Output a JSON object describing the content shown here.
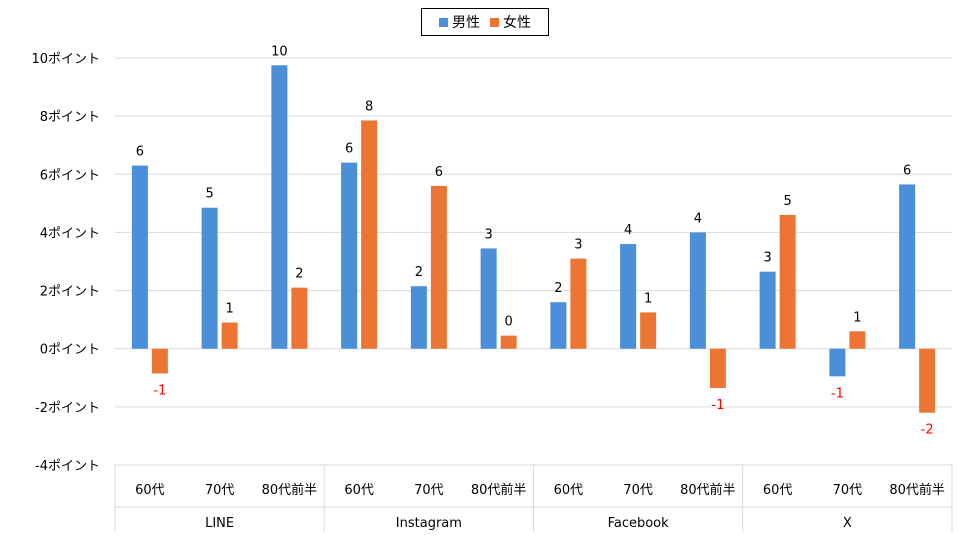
{
  "chart_data": {
    "type": "bar",
    "groups": [
      {
        "name": "LINE",
        "categories": [
          "60代",
          "70代",
          "80代前半"
        ]
      },
      {
        "name": "Instagram",
        "categories": [
          "60代",
          "70代",
          "80代前半"
        ]
      },
      {
        "name": "Facebook",
        "categories": [
          "60代",
          "70代",
          "80代前半"
        ]
      },
      {
        "name": "X",
        "categories": [
          "60代",
          "70代",
          "80代前半"
        ]
      }
    ],
    "series": [
      {
        "name": "男性",
        "color": "#4a8fd8",
        "values": [
          6.3,
          4.85,
          9.75,
          6.4,
          2.15,
          3.45,
          1.6,
          3.6,
          4.0,
          2.65,
          -0.95,
          5.65
        ],
        "labels": [
          "6",
          "5",
          "10",
          "6",
          "2",
          "3",
          "2",
          "4",
          "4",
          "3",
          "-1",
          "6"
        ]
      },
      {
        "name": "女性",
        "color": "#ec7534",
        "values": [
          -0.85,
          0.9,
          2.1,
          7.85,
          5.6,
          0.45,
          3.1,
          1.25,
          -1.35,
          4.6,
          0.6,
          -2.2
        ],
        "labels": [
          "-1",
          "1",
          "2",
          "8",
          "6",
          "0",
          "3",
          "1",
          "-1",
          "5",
          "1",
          "-2"
        ]
      }
    ],
    "yticks": [
      "10ポイント",
      "8ポイント",
      "6ポイント",
      "4ポイント",
      "2ポイント",
      "0ポイント",
      "-2ポイント",
      "-4ポイント"
    ],
    "ylim": [
      -4,
      10
    ],
    "grid": true,
    "legend_position": "top-center",
    "negative_label_color": "#ff0000"
  }
}
